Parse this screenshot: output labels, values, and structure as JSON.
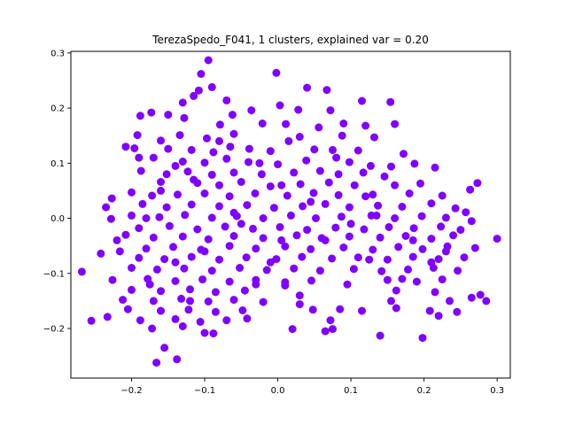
{
  "chart_data": {
    "type": "scatter",
    "title": "TerezaSpedo_F041, 1 clusters, explained var = 0.20",
    "xlabel": "",
    "ylabel": "",
    "xlim": [
      -0.283,
      0.318
    ],
    "ylim": [
      -0.29,
      0.303
    ],
    "xticks": [
      -0.2,
      -0.1,
      0.0,
      0.1,
      0.2,
      0.3
    ],
    "yticks": [
      -0.2,
      -0.1,
      0.0,
      0.1,
      0.2,
      0.3
    ],
    "xtick_labels": [
      "−0.2",
      "−0.1",
      "0.0",
      "0.1",
      "0.2",
      "0.3"
    ],
    "ytick_labels": [
      "−0.2",
      "−0.1",
      "0.0",
      "0.1",
      "0.2",
      "0.3"
    ],
    "grid": false,
    "legend": "none",
    "marker_color": "#8000ff",
    "series": [
      {
        "points": [
          [
            -0.095,
            0.287
          ],
          [
            -0.002,
            0.264
          ],
          [
            -0.105,
            0.262
          ],
          [
            -0.09,
            0.238
          ],
          [
            -0.108,
            0.232
          ],
          [
            -0.115,
            0.222
          ],
          [
            -0.07,
            0.214
          ],
          [
            -0.13,
            0.21
          ],
          [
            0.04,
            0.237
          ],
          [
            0.067,
            0.233
          ],
          [
            0.115,
            0.213
          ],
          [
            0.154,
            0.211
          ],
          [
            -0.173,
            0.192
          ],
          [
            -0.188,
            0.186
          ],
          [
            -0.15,
            0.188
          ],
          [
            -0.128,
            0.182
          ],
          [
            -0.062,
            0.188
          ],
          [
            -0.036,
            0.196
          ],
          [
            0.003,
            0.205
          ],
          [
            0.028,
            0.197
          ],
          [
            0.072,
            0.196
          ],
          [
            -0.079,
            0.17
          ],
          [
            -0.021,
            0.172
          ],
          [
            0.011,
            0.171
          ],
          [
            0.056,
            0.165
          ],
          [
            0.09,
            0.172
          ],
          [
            0.12,
            0.168
          ],
          [
            0.16,
            0.171
          ],
          [
            -0.192,
            0.151
          ],
          [
            -0.16,
            0.141
          ],
          [
            -0.134,
            0.151
          ],
          [
            -0.097,
            0.145
          ],
          [
            -0.06,
            0.153
          ],
          [
            0.03,
            0.148
          ],
          [
            0.088,
            0.15
          ],
          [
            0.132,
            0.147
          ],
          [
            -0.208,
            0.13
          ],
          [
            -0.196,
            0.127
          ],
          [
            -0.15,
            0.126
          ],
          [
            -0.118,
            0.124
          ],
          [
            -0.088,
            0.12
          ],
          [
            -0.039,
            0.126
          ],
          [
            -0.01,
            0.122
          ],
          [
            0.05,
            0.125
          ],
          [
            0.075,
            0.124
          ],
          [
            0.11,
            0.123
          ],
          [
            0.172,
            0.117
          ],
          [
            -0.17,
            0.11
          ],
          [
            -0.13,
            0.103
          ],
          [
            -0.1,
            0.101
          ],
          [
            -0.07,
            0.108
          ],
          [
            -0.04,
            0.102
          ],
          [
            0.0,
            0.098
          ],
          [
            0.039,
            0.105
          ],
          [
            0.098,
            0.102
          ],
          [
            0.127,
            0.095
          ],
          [
            0.155,
            0.094
          ],
          [
            0.187,
            0.099
          ],
          [
            -0.187,
            0.086
          ],
          [
            -0.152,
            0.08
          ],
          [
            -0.123,
            0.085
          ],
          [
            -0.09,
            0.079
          ],
          [
            -0.06,
            0.083
          ],
          [
            -0.022,
            0.08
          ],
          [
            0.022,
            0.083
          ],
          [
            0.058,
            0.086
          ],
          [
            0.083,
            0.08
          ],
          [
            0.117,
            0.083
          ],
          [
            0.146,
            0.076
          ],
          [
            0.215,
            0.092
          ],
          [
            -0.16,
            0.066
          ],
          [
            -0.11,
            0.064
          ],
          [
            -0.08,
            0.06
          ],
          [
            -0.05,
            0.066
          ],
          [
            -0.01,
            0.058
          ],
          [
            0.031,
            0.062
          ],
          [
            0.07,
            0.065
          ],
          [
            0.105,
            0.06
          ],
          [
            0.16,
            0.06
          ],
          [
            0.195,
            0.063
          ],
          [
            0.273,
            0.064
          ],
          [
            -0.2,
            0.047
          ],
          [
            -0.172,
            0.041
          ],
          [
            -0.137,
            0.043
          ],
          [
            -0.1,
            0.045
          ],
          [
            -0.066,
            0.04
          ],
          [
            -0.031,
            0.045
          ],
          [
            0.013,
            0.041
          ],
          [
            0.049,
            0.046
          ],
          [
            0.083,
            0.042
          ],
          [
            0.13,
            0.043
          ],
          [
            0.18,
            0.045
          ],
          [
            0.225,
            0.041
          ],
          [
            0.263,
            0.052
          ],
          [
            -0.227,
            0.036
          ],
          [
            -0.185,
            0.026
          ],
          [
            -0.152,
            0.02
          ],
          [
            -0.118,
            0.025
          ],
          [
            -0.08,
            0.022
          ],
          [
            -0.042,
            0.024
          ],
          [
            -0.005,
            0.019
          ],
          [
            0.034,
            0.022
          ],
          [
            0.065,
            0.026
          ],
          [
            0.098,
            0.02
          ],
          [
            0.137,
            0.023
          ],
          [
            0.17,
            0.021
          ],
          [
            0.21,
            0.027
          ],
          [
            0.243,
            0.018
          ],
          [
            -0.2,
            0.005
          ],
          [
            -0.162,
            0.002
          ],
          [
            -0.127,
            0.006
          ],
          [
            -0.09,
            0.001
          ],
          [
            -0.056,
            0.004
          ],
          [
            -0.02,
            0.0
          ],
          [
            0.018,
            0.005
          ],
          [
            0.052,
            0.0
          ],
          [
            0.087,
            0.003
          ],
          [
            0.128,
            0.005
          ],
          [
            0.16,
            0.0
          ],
          [
            0.197,
            0.004
          ],
          [
            0.23,
            0.001
          ],
          [
            0.257,
            0.011
          ],
          [
            -0.228,
            -0.001
          ],
          [
            -0.19,
            -0.018
          ],
          [
            -0.148,
            -0.014
          ],
          [
            -0.11,
            -0.02
          ],
          [
            -0.072,
            -0.015
          ],
          [
            -0.034,
            -0.019
          ],
          [
            0.003,
            -0.016
          ],
          [
            0.04,
            -0.021
          ],
          [
            0.079,
            -0.017
          ],
          [
            0.118,
            -0.02
          ],
          [
            0.152,
            -0.016
          ],
          [
            0.186,
            -0.018
          ],
          [
            0.223,
            -0.015
          ],
          [
            0.25,
            -0.021
          ],
          [
            -0.208,
            -0.03
          ],
          [
            -0.17,
            -0.035
          ],
          [
            -0.13,
            -0.033
          ],
          [
            -0.095,
            -0.038
          ],
          [
            -0.06,
            -0.032
          ],
          [
            -0.02,
            -0.036
          ],
          [
            0.026,
            -0.031
          ],
          [
            0.06,
            -0.036
          ],
          [
            0.098,
            -0.033
          ],
          [
            0.14,
            -0.035
          ],
          [
            0.175,
            -0.032
          ],
          [
            0.21,
            -0.037
          ],
          [
            0.24,
            -0.031
          ],
          [
            0.3,
            -0.037
          ],
          [
            -0.216,
            -0.06
          ],
          [
            -0.242,
            -0.064
          ],
          [
            -0.18,
            -0.055
          ],
          [
            -0.143,
            -0.052
          ],
          [
            -0.105,
            -0.057
          ],
          [
            -0.066,
            -0.05
          ],
          [
            -0.03,
            -0.055
          ],
          [
            0.01,
            -0.051
          ],
          [
            0.045,
            -0.056
          ],
          [
            0.09,
            -0.053
          ],
          [
            0.13,
            -0.057
          ],
          [
            0.165,
            -0.052
          ],
          [
            0.198,
            -0.056
          ],
          [
            0.232,
            -0.051
          ],
          [
            0.27,
            -0.054
          ],
          [
            -0.19,
            -0.072
          ],
          [
            -0.155,
            -0.074
          ],
          [
            -0.118,
            -0.07
          ],
          [
            -0.08,
            -0.075
          ],
          [
            -0.043,
            -0.071
          ],
          [
            -0.002,
            -0.074
          ],
          [
            0.033,
            -0.07
          ],
          [
            0.074,
            -0.073
          ],
          [
            0.11,
            -0.071
          ],
          [
            0.15,
            -0.075
          ],
          [
            0.185,
            -0.07
          ],
          [
            0.22,
            -0.074
          ],
          [
            0.255,
            -0.071
          ],
          [
            -0.268,
            -0.097
          ],
          [
            -0.2,
            -0.09
          ],
          [
            -0.165,
            -0.093
          ],
          [
            -0.128,
            -0.091
          ],
          [
            -0.09,
            -0.095
          ],
          [
            -0.052,
            -0.09
          ],
          [
            -0.015,
            -0.094
          ],
          [
            0.022,
            -0.091
          ],
          [
            0.058,
            -0.095
          ],
          [
            0.104,
            -0.092
          ],
          [
            0.142,
            -0.096
          ],
          [
            0.178,
            -0.093
          ],
          [
            0.213,
            -0.09
          ],
          [
            0.246,
            -0.095
          ],
          [
            -0.226,
            -0.112
          ],
          [
            -0.178,
            -0.11
          ],
          [
            -0.14,
            -0.114
          ],
          [
            -0.103,
            -0.111
          ],
          [
            -0.066,
            -0.115
          ],
          [
            -0.03,
            -0.112
          ],
          [
            0.01,
            -0.116
          ],
          [
            0.046,
            -0.113
          ],
          [
            0.15,
            -0.112
          ],
          [
            0.19,
            -0.115
          ],
          [
            0.225,
            -0.111
          ],
          [
            -0.2,
            -0.13
          ],
          [
            -0.16,
            -0.132
          ],
          [
            -0.12,
            -0.129
          ],
          [
            -0.085,
            -0.134
          ],
          [
            -0.045,
            -0.131
          ],
          [
            0.01,
            -0.122
          ],
          [
            0.162,
            -0.131
          ],
          [
            0.215,
            -0.134
          ],
          [
            0.265,
            -0.144
          ],
          [
            0.277,
            -0.139
          ],
          [
            -0.212,
            -0.148
          ],
          [
            -0.17,
            -0.15
          ],
          [
            -0.132,
            -0.146
          ],
          [
            -0.095,
            -0.151
          ],
          [
            -0.06,
            -0.148
          ],
          [
            -0.02,
            -0.152
          ],
          [
            0.03,
            -0.156
          ],
          [
            0.085,
            -0.165
          ],
          [
            0.155,
            -0.15
          ],
          [
            0.235,
            -0.15
          ],
          [
            0.285,
            -0.15
          ],
          [
            -0.205,
            -0.165
          ],
          [
            -0.16,
            -0.168
          ],
          [
            -0.122,
            -0.166
          ],
          [
            -0.085,
            -0.17
          ],
          [
            -0.048,
            -0.167
          ],
          [
            0.048,
            -0.166
          ],
          [
            0.115,
            -0.168
          ],
          [
            0.162,
            -0.163
          ],
          [
            0.208,
            -0.168
          ],
          [
            0.245,
            -0.17
          ],
          [
            -0.233,
            -0.179
          ],
          [
            -0.255,
            -0.186
          ],
          [
            -0.188,
            -0.185
          ],
          [
            -0.14,
            -0.183
          ],
          [
            -0.106,
            -0.188
          ],
          [
            -0.07,
            -0.185
          ],
          [
            -0.042,
            -0.182
          ],
          [
            0.072,
            -0.185
          ],
          [
            0.22,
            -0.177
          ],
          [
            -0.172,
            -0.2
          ],
          [
            -0.13,
            -0.196
          ],
          [
            -0.1,
            -0.208
          ],
          [
            -0.088,
            -0.209
          ],
          [
            0.02,
            -0.201
          ],
          [
            0.075,
            -0.201
          ],
          [
            0.065,
            -0.205
          ],
          [
            0.14,
            -0.213
          ],
          [
            0.198,
            -0.217
          ],
          [
            -0.155,
            -0.235
          ],
          [
            -0.138,
            -0.256
          ],
          [
            -0.166,
            -0.262
          ],
          [
            -0.14,
            0.095
          ],
          [
            -0.115,
            0.07
          ],
          [
            -0.065,
            0.13
          ],
          [
            -0.025,
            0.1
          ],
          [
            0.015,
            0.14
          ],
          [
            -0.18,
            0.0
          ],
          [
            -0.05,
            -0.01
          ],
          [
            0.005,
            -0.04
          ],
          [
            0.1,
            -0.01
          ],
          [
            0.135,
            0.005
          ],
          [
            0.185,
            -0.04
          ],
          [
            0.21,
            -0.08
          ],
          [
            -0.14,
            -0.08
          ],
          [
            -0.1,
            -0.06
          ],
          [
            -0.01,
            -0.08
          ],
          [
            0.065,
            -0.04
          ],
          [
            0.125,
            -0.075
          ],
          [
            -0.19,
            0.11
          ],
          [
            -0.16,
            0.05
          ],
          [
            -0.08,
            0.14
          ],
          [
            0.045,
            0.03
          ],
          [
            0.08,
            0.11
          ],
          [
            0.23,
            -0.06
          ],
          [
            -0.12,
            -0.15
          ],
          [
            -0.03,
            -0.12
          ],
          [
            0.17,
            -0.11
          ],
          [
            -0.22,
            -0.04
          ],
          [
            0.265,
            -0.005
          ],
          [
            0.12,
            0.04
          ],
          [
            -0.06,
            0.01
          ],
          [
            0.005,
            0.06
          ],
          [
            0.095,
            -0.12
          ],
          [
            -0.175,
            -0.12
          ],
          [
            -0.235,
            0.02
          ],
          [
            0.03,
            -0.14
          ]
        ]
      }
    ]
  }
}
